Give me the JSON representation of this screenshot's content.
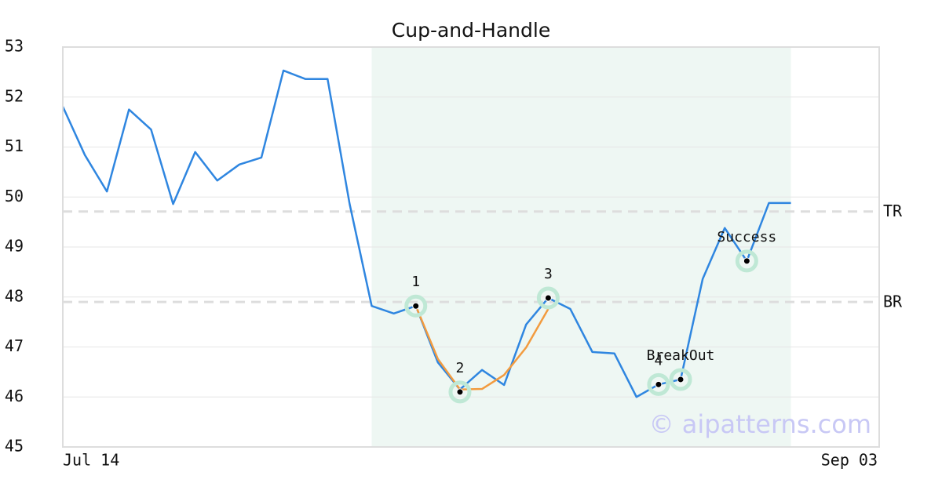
{
  "chart_data": {
    "type": "line",
    "title": "Cup-and-Handle",
    "watermark": "© aipatterns.com",
    "categories": [
      "Jul 14",
      null,
      null,
      null,
      null,
      null,
      null,
      null,
      null,
      null,
      null,
      null,
      null,
      null,
      null,
      null,
      null,
      null,
      null,
      null,
      null,
      null,
      null,
      null,
      null,
      null,
      null,
      null,
      null,
      null,
      null,
      null,
      null,
      null,
      null,
      null,
      null,
      "Sep 03"
    ],
    "series": [
      {
        "color": "#2f86e0",
        "values": [
          51.81,
          50.84,
          50.11,
          51.75,
          51.35,
          49.86,
          50.9,
          50.33,
          50.65,
          50.79,
          52.53,
          52.36,
          52.36,
          49.86,
          47.82,
          47.67,
          47.82,
          46.69,
          46.15,
          46.54,
          46.24,
          47.45,
          47.98,
          47.76,
          46.9,
          46.87,
          46.0,
          46.25,
          46.35,
          48.36,
          49.38,
          48.72,
          49.88,
          49.88,
          null,
          null,
          null,
          null
        ]
      },
      {
        "color": "#f29b3f",
        "values": [
          null,
          null,
          null,
          null,
          null,
          null,
          null,
          null,
          null,
          null,
          null,
          null,
          null,
          null,
          null,
          null,
          47.82,
          46.76,
          46.15,
          46.16,
          46.44,
          46.99,
          47.76,
          null,
          null,
          null,
          null,
          46.25,
          null,
          null,
          null,
          null,
          null,
          null,
          null,
          null,
          null,
          null
        ]
      }
    ],
    "points": [
      {
        "label": "1",
        "index": 16,
        "value": 47.82
      },
      {
        "label": "2",
        "index": 18,
        "value": 46.1
      },
      {
        "label": "3",
        "index": 22,
        "value": 47.98
      },
      {
        "label": "4",
        "index": 27,
        "value": 46.25
      },
      {
        "label": "BreakOut",
        "index": 28,
        "value": 46.35
      },
      {
        "label": "Success",
        "index": 31,
        "value": 48.72
      }
    ],
    "levels": [
      {
        "label": "TR",
        "value": 49.71
      },
      {
        "label": "BR",
        "value": 47.9
      }
    ],
    "highlight": {
      "from": 14,
      "to": 33,
      "color": "#eef7f3"
    },
    "ylim": [
      45,
      53
    ],
    "yticks": [
      45,
      46,
      47,
      48,
      49,
      50,
      51,
      52,
      53
    ],
    "grid": true
  }
}
